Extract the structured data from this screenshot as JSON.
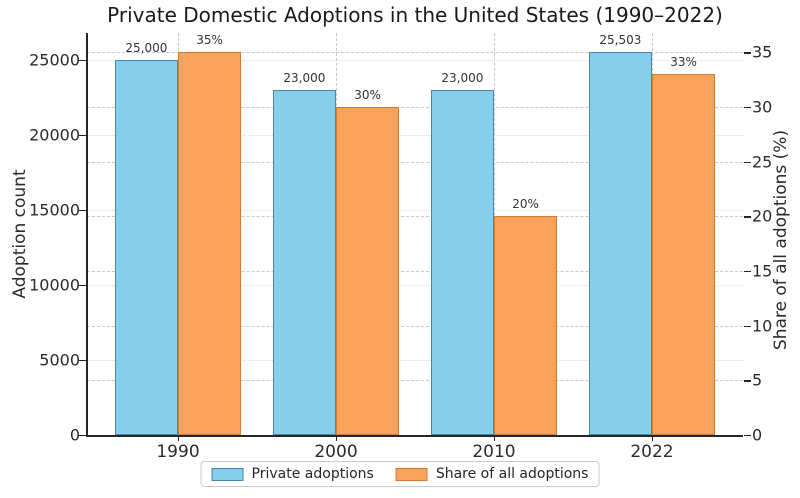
{
  "title": "Private Domestic Adoptions in the United States (1990–2022)",
  "chart_data": {
    "type": "bar",
    "title": "Private Domestic Adoptions in the United States (1990–2022)",
    "categories": [
      "1990",
      "2000",
      "2010",
      "2022"
    ],
    "series": [
      {
        "name": "Private adoptions",
        "axis": "left",
        "values": [
          25000,
          23000,
          23000,
          25503
        ],
        "labels": [
          "25,000",
          "23,000",
          "23,000",
          "25,503"
        ],
        "fill": "#87CEEB",
        "edge": "#4B86AE"
      },
      {
        "name": "Share of all adoptions",
        "axis": "right",
        "values": [
          35,
          30,
          20,
          33
        ],
        "labels": [
          "35%",
          "30%",
          "20%",
          "33%"
        ],
        "fill": "#F9A25C",
        "edge": "#CE7D33"
      }
    ],
    "left_axis": {
      "label": "Adoption count",
      "tick_labels": [
        "0",
        "5000",
        "10000",
        "15000",
        "20000",
        "25000"
      ],
      "tick_values": [
        0,
        5000,
        10000,
        15000,
        20000,
        25000
      ],
      "ylim": [
        0,
        26778
      ]
    },
    "right_axis": {
      "label": "Share of all adoptions (%)",
      "tick_labels": [
        "0",
        "5",
        "10",
        "15",
        "20",
        "25",
        "30",
        "35"
      ],
      "tick_values": [
        0,
        5,
        10,
        15,
        20,
        25,
        30,
        35
      ],
      "ylim": [
        0,
        36.75
      ]
    },
    "legend": {
      "position": "bottom center",
      "entries": [
        "Private adoptions",
        "Share of all adoptions"
      ]
    },
    "grid": true
  }
}
